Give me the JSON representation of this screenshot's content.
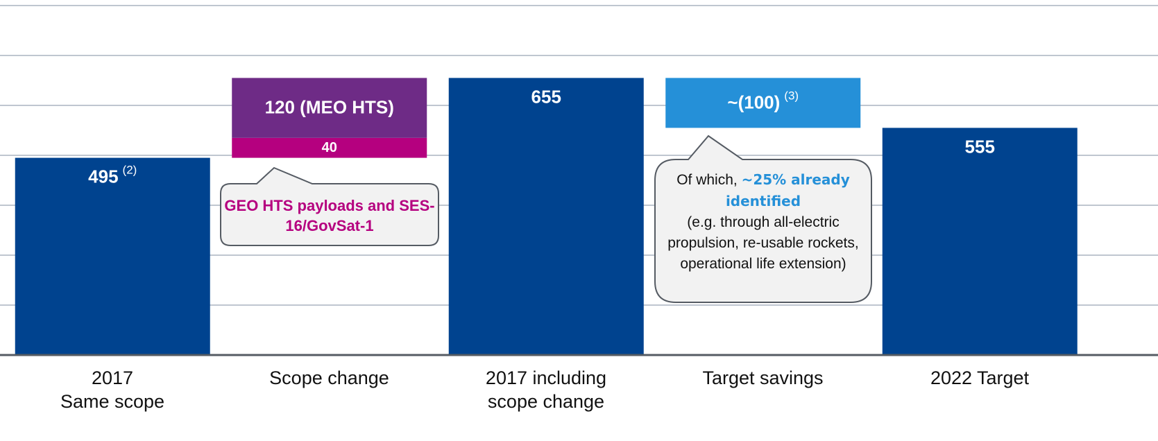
{
  "chart_data": {
    "type": "waterfall",
    "ylim": [
      100,
      800
    ],
    "yticks": [
      100,
      200,
      300,
      400,
      500,
      600,
      700,
      800
    ],
    "grid": true,
    "bars": [
      {
        "category": "2017\nSame scope",
        "total": true,
        "segments": [
          {
            "value": 495,
            "label": "495",
            "note": "(2)",
            "color": "#00438f"
          }
        ]
      },
      {
        "category": "Scope change",
        "total": false,
        "segments": [
          {
            "value": 40,
            "label": "40",
            "color": "#b5007f"
          },
          {
            "value": 120,
            "label": "120 (MEO HTS)",
            "color": "#6e2b86"
          }
        ]
      },
      {
        "category": "2017 including\nscope change",
        "total": true,
        "segments": [
          {
            "value": 655,
            "label": "655",
            "color": "#00438f"
          }
        ]
      },
      {
        "category": "Target savings",
        "total": false,
        "segments": [
          {
            "value": -100,
            "label": "~(100)",
            "note": "(3)",
            "color": "#2590d8"
          }
        ]
      },
      {
        "category": "2022 Target",
        "total": true,
        "segments": [
          {
            "value": 555,
            "label": "555",
            "color": "#00438f"
          }
        ]
      }
    ],
    "annotations": [
      {
        "text": "GEO HTS payloads and SES-16/GovSat-1"
      },
      {
        "intro": "Of which, ",
        "highlight": "~25% already identified",
        "text": "(e.g. through all-electric propulsion, re-usable rockets, operational life extension)"
      }
    ]
  }
}
